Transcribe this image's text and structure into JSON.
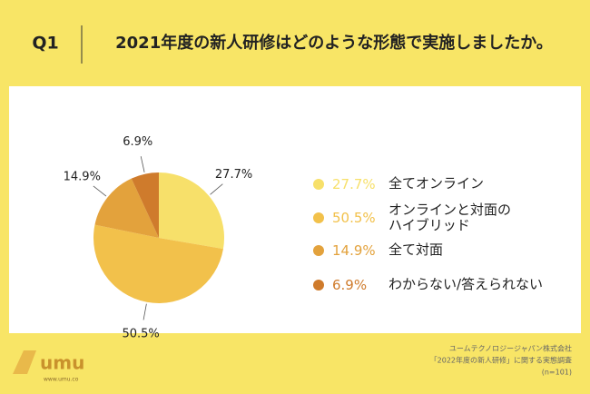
{
  "header": {
    "number": "Q1",
    "question": "2021年度の新人研修はどのような形態で実施しましたか。"
  },
  "chart_data": {
    "type": "pie",
    "categories": [
      "全てオンライン",
      "オンラインと対面の\nハイブリッド",
      "全て対面",
      "わからない/答えられない"
    ],
    "values": [
      27.7,
      50.5,
      14.9,
      6.9
    ],
    "value_labels": [
      "27.7%",
      "50.5%",
      "14.9%",
      "6.9%"
    ],
    "colors": [
      "#f7e06a",
      "#f2c14b",
      "#e3a23c",
      "#cf7b2c"
    ],
    "legend": "right"
  },
  "footer": {
    "logo": "umu",
    "logo_url": "www.umu.co",
    "source": [
      "ユームテクノロジージャパン株式会社",
      "「2022年度の新人研修」に関する実態調査",
      "(n=101)"
    ]
  }
}
